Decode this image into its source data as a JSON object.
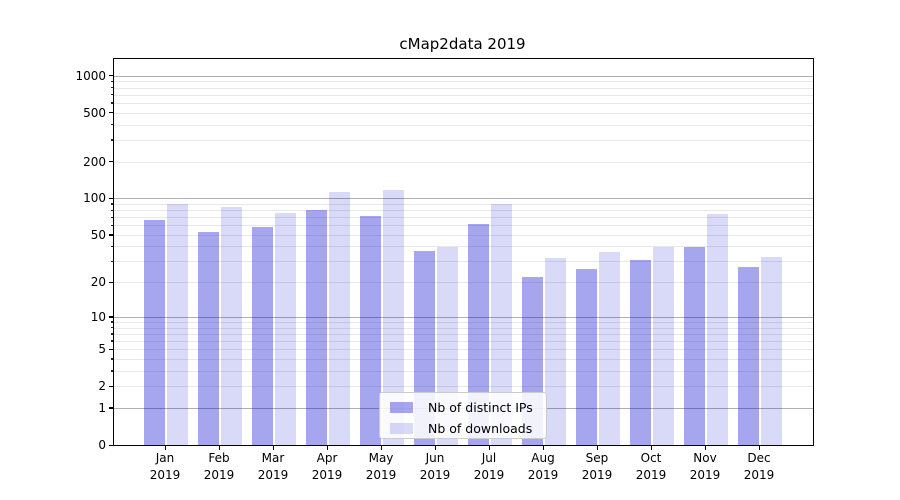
{
  "chart_data": {
    "type": "bar",
    "title": "cMap2data 2019",
    "x": {
      "months": [
        "Jan",
        "Feb",
        "Mar",
        "Apr",
        "May",
        "Jun",
        "Jul",
        "Aug",
        "Sep",
        "Oct",
        "Nov",
        "Dec"
      ],
      "year": "2019"
    },
    "series": [
      {
        "name": "Nb of distinct IPs",
        "color": "rgba(0,0,205,0.35)",
        "values": [
          66,
          53,
          58,
          80,
          71,
          37,
          62,
          22,
          26,
          31,
          40,
          27
        ]
      },
      {
        "name": "Nb of downloads",
        "color": "rgba(0,0,205,0.15)",
        "values": [
          90,
          85,
          76,
          112,
          118,
          40,
          90,
          32,
          36,
          40,
          74,
          33
        ]
      }
    ],
    "y_axis": {
      "scale": "log10(1+v)",
      "max": 1367,
      "ticks": [
        0,
        1,
        2,
        5,
        10,
        20,
        50,
        100,
        200,
        500,
        1000
      ],
      "major_gridlines": [
        1,
        10,
        100,
        1000
      ],
      "minor_gridlines": [
        2,
        3,
        4,
        5,
        6,
        7,
        8,
        9,
        20,
        30,
        40,
        50,
        60,
        70,
        80,
        90,
        200,
        300,
        400,
        500,
        600,
        700,
        800,
        900
      ]
    },
    "legend": {
      "position": "lower center inside"
    },
    "grid": {
      "major_color": "#b0b0b0",
      "minor_color": "#e8e8e8"
    }
  }
}
